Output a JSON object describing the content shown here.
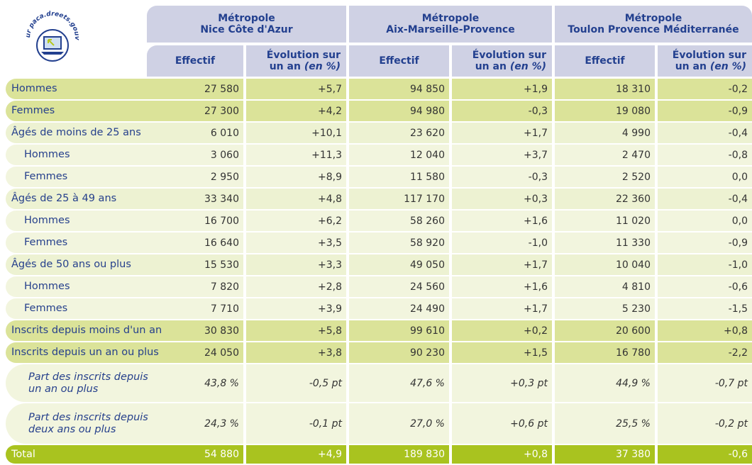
{
  "logo": {
    "text": "• sur paca.dreets.gouv.fr"
  },
  "header": {
    "groups": [
      {
        "line1": "Métropole",
        "line2": "Nice Côte d'Azur"
      },
      {
        "line1": "Métropole",
        "line2": "Aix-Marseille-Provence"
      },
      {
        "line1": "Métropole",
        "line2": "Toulon Provence Méditerranée"
      }
    ],
    "effectif": "Effectif",
    "evolution": {
      "line1": "Évolution sur",
      "line2": "un an",
      "unit": "(en %)"
    }
  },
  "table": {
    "rows": [
      {
        "label": "Hommes",
        "values": [
          "27 580",
          "+5,7",
          "94 850",
          "+1,9",
          "18 310",
          "-0,2"
        ]
      },
      {
        "label": "Femmes",
        "values": [
          "27 300",
          "+4,2",
          "94 980",
          "-0,3",
          "19 080",
          "-0,9"
        ]
      },
      {
        "label": "Âgés de moins de 25 ans",
        "values": [
          "6 010",
          "+10,1",
          "23 620",
          "+1,7",
          "4 990",
          "-0,4"
        ]
      },
      {
        "label": "Hommes",
        "values": [
          "3 060",
          "+11,3",
          "12 040",
          "+3,7",
          "2 470",
          "-0,8"
        ]
      },
      {
        "label": "Femmes",
        "values": [
          "2 950",
          "+8,9",
          "11 580",
          "-0,3",
          "2 520",
          "0,0"
        ]
      },
      {
        "label": "Âgés de 25 à 49 ans",
        "values": [
          "33 340",
          "+4,8",
          "117 170",
          "+0,3",
          "22 360",
          "-0,4"
        ]
      },
      {
        "label": "Hommes",
        "values": [
          "16 700",
          "+6,2",
          "58 260",
          "+1,6",
          "11 020",
          "0,0"
        ]
      },
      {
        "label": "Femmes",
        "values": [
          "16 640",
          "+3,5",
          "58 920",
          "-1,0",
          "11 330",
          "-0,9"
        ]
      },
      {
        "label": "Âgés de 50 ans ou plus",
        "values": [
          "15 530",
          "+3,3",
          "49 050",
          "+1,7",
          "10 040",
          "-1,0"
        ]
      },
      {
        "label": "Hommes",
        "values": [
          "7 820",
          "+2,8",
          "24 560",
          "+1,6",
          "4 810",
          "-0,6"
        ]
      },
      {
        "label": "Femmes",
        "values": [
          "7 710",
          "+3,9",
          "24 490",
          "+1,7",
          "5 230",
          "-1,5"
        ]
      },
      {
        "label": "Inscrits depuis moins d'un an",
        "values": [
          "30 830",
          "+5,8",
          "99 610",
          "+0,2",
          "20 600",
          "+0,8"
        ]
      },
      {
        "label": "Inscrits depuis un an ou plus",
        "values": [
          "24 050",
          "+3,8",
          "90 230",
          "+1,5",
          "16 780",
          "-2,2"
        ]
      },
      {
        "label": "Part des inscrits depuis un an ou plus",
        "values": [
          "43,8 %",
          "-0,5 pt",
          "47,6 %",
          "+0,3 pt",
          "44,9 %",
          "-0,7 pt"
        ]
      },
      {
        "label": "Part des inscrits depuis deux ans ou plus",
        "values": [
          "24,3 %",
          "-0,1 pt",
          "27,0 %",
          "+0,6 pt",
          "25,5 %",
          "-0,2 pt"
        ]
      },
      {
        "label": "Total",
        "values": [
          "54 880",
          "+4,9",
          "189 830",
          "+0,8",
          "37 380",
          "-0,6"
        ]
      }
    ]
  }
}
